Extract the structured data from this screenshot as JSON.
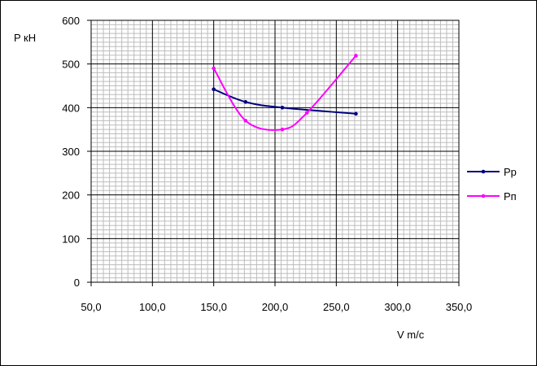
{
  "chart_data": {
    "type": "line",
    "title": "",
    "ylabel": "P кН",
    "xlabel": "V m/c",
    "xlim": [
      50,
      350
    ],
    "ylim": [
      0,
      600
    ],
    "x_ticks": [
      "50,0",
      "100,0",
      "150,0",
      "200,0",
      "250,0",
      "300,0",
      "350,0"
    ],
    "y_ticks": [
      "0",
      "100",
      "200",
      "300",
      "400",
      "500",
      "600"
    ],
    "grid": true,
    "legend_position": "right",
    "series": [
      {
        "name": "Pp",
        "color": "#000080",
        "points": [
          [
            150,
            442
          ],
          [
            176,
            413
          ],
          [
            206,
            400
          ],
          [
            266,
            386
          ]
        ]
      },
      {
        "name": "Pп",
        "color": "#FF00FF",
        "points": [
          [
            150,
            490
          ],
          [
            176,
            370
          ],
          [
            206,
            350
          ],
          [
            226,
            388
          ],
          [
            266,
            519
          ]
        ]
      }
    ]
  }
}
